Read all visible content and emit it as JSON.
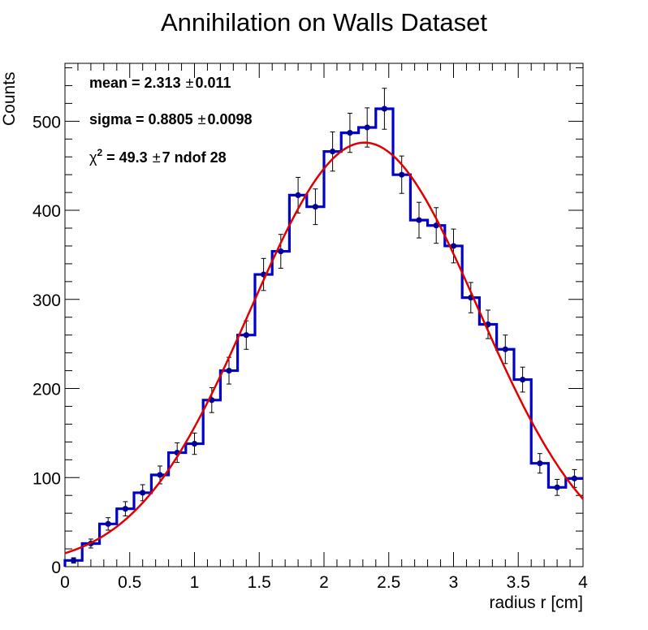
{
  "chart_data": {
    "type": "histogram-with-fit",
    "title": "Annihilation on Walls Dataset",
    "xlabel": "radius r [cm]",
    "ylabel": "Counts",
    "xlim": [
      0,
      4
    ],
    "ylim": [
      0,
      565
    ],
    "x_ticks": [
      0,
      0.5,
      1,
      1.5,
      2,
      2.5,
      3,
      3.5,
      4
    ],
    "x_tick_labels": [
      "0",
      "0.5",
      "1",
      "1.5",
      "2",
      "2.5",
      "3",
      "3.5",
      "4"
    ],
    "y_ticks": [
      0,
      100,
      200,
      300,
      400,
      500
    ],
    "y_tick_labels": [
      "0",
      "100",
      "200",
      "300",
      "400",
      "500"
    ],
    "histogram": {
      "color": "#0000cc",
      "bin_edges": [
        0.0,
        0.133,
        0.267,
        0.4,
        0.533,
        0.667,
        0.8,
        0.933,
        1.067,
        1.2,
        1.333,
        1.467,
        1.6,
        1.733,
        1.867,
        2.0,
        2.133,
        2.267,
        2.4,
        2.533,
        2.667,
        2.8,
        2.933,
        3.067,
        3.2,
        3.333,
        3.467,
        3.6,
        3.733,
        3.867,
        4.0
      ],
      "values": [
        7,
        26,
        48,
        65,
        83,
        103,
        128,
        138,
        187,
        220,
        260,
        328,
        354,
        417,
        404,
        466,
        487,
        493,
        514,
        440,
        389,
        383,
        360,
        302,
        272,
        244,
        210,
        116,
        89,
        99
      ],
      "errors": [
        3,
        5,
        7,
        8,
        9,
        10,
        11,
        12,
        14,
        15,
        16,
        18,
        19,
        20,
        20,
        22,
        22,
        22,
        23,
        21,
        20,
        20,
        19,
        17,
        16,
        16,
        14,
        11,
        9,
        10
      ]
    },
    "fit": {
      "color": "#e00000",
      "function": "gaussian",
      "mean": 2.313,
      "sigma": 0.8805,
      "amplitude": 476
    },
    "annotations": [
      {
        "label": "mean =  2.313",
        "pm": "±",
        "value": "0.011"
      },
      {
        "label": "sigma =  0.8805",
        "pm": "±",
        "value": "0.0098"
      },
      {
        "chi": "χ",
        "sup": "2",
        "label": " = 49.3",
        "pm": "±",
        "value": "7 ndof 28"
      }
    ]
  }
}
